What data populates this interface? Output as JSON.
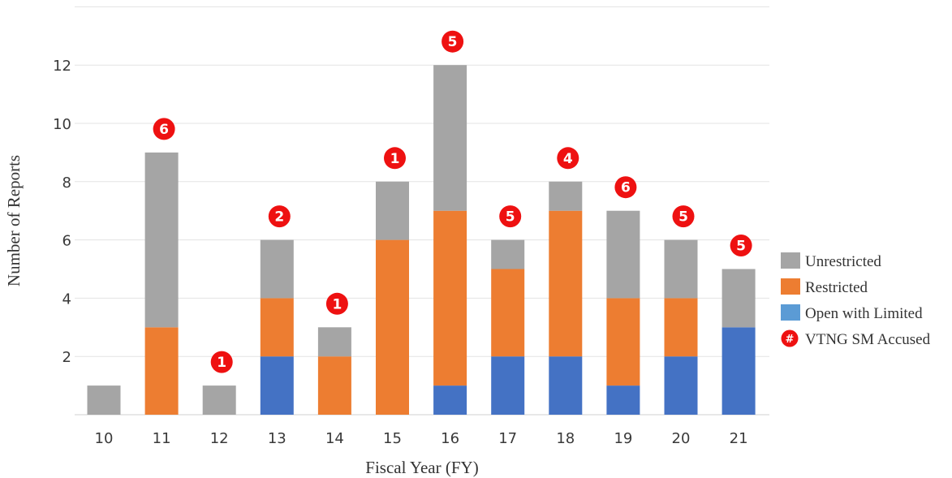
{
  "chart_data": {
    "type": "bar",
    "stacked": true,
    "xlabel": "Fiscal Year (FY)",
    "ylabel": "Number of Reports",
    "categories": [
      "10",
      "11",
      "12",
      "13",
      "14",
      "15",
      "16",
      "17",
      "18",
      "19",
      "20",
      "21"
    ],
    "ylim": [
      0,
      14
    ],
    "yticks": [
      2,
      4,
      6,
      8,
      10,
      12
    ],
    "grid": true,
    "legend_position": "right",
    "series": [
      {
        "name": "Open with Limited",
        "color": "#4472c4",
        "values": [
          0,
          0,
          0,
          2,
          0,
          0,
          1,
          2,
          2,
          1,
          2,
          3
        ]
      },
      {
        "name": "Restricted",
        "color": "#ed7d31",
        "values": [
          0,
          3,
          0,
          2,
          2,
          6,
          6,
          3,
          5,
          3,
          2,
          0
        ]
      },
      {
        "name": "Unrestricted",
        "color": "#a5a5a5",
        "values": [
          1,
          6,
          1,
          2,
          1,
          2,
          5,
          1,
          1,
          3,
          2,
          2
        ]
      }
    ],
    "annotations": {
      "name": "VTNG SM Accused",
      "color": "#ee1111",
      "marker": "#",
      "values": [
        "",
        "6",
        "1",
        "2",
        "1",
        "1",
        "5",
        "5",
        "4",
        "6",
        "5",
        "5"
      ]
    },
    "legend": [
      {
        "label": "Unrestricted",
        "color": "#a5a5a5",
        "kind": "swatch"
      },
      {
        "label": "Restricted",
        "color": "#ed7d31",
        "kind": "swatch"
      },
      {
        "label": "Open with Limited",
        "color": "#5b9bd5",
        "kind": "swatch"
      },
      {
        "label": "VTNG SM Accused",
        "color": "#ee1111",
        "kind": "badge"
      }
    ]
  }
}
